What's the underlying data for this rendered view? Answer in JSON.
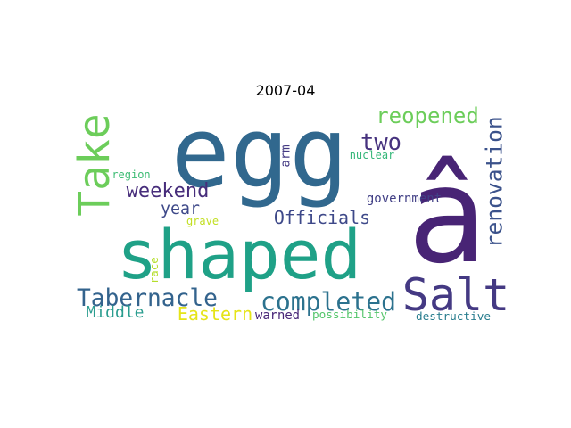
{
  "title": "2007-04",
  "words": [
    {
      "id": "egg",
      "text": "egg",
      "color": "#31688e"
    },
    {
      "id": "a-circumflex",
      "text": "â",
      "color": "#482475"
    },
    {
      "id": "shaped",
      "text": "shaped",
      "color": "#1fa187"
    },
    {
      "id": "take",
      "text": "Take",
      "color": "#6ccd5a"
    },
    {
      "id": "salt",
      "text": "Salt",
      "color": "#443983"
    },
    {
      "id": "tabernacle",
      "text": "Tabernacle",
      "color": "#33638d"
    },
    {
      "id": "completed",
      "text": "completed",
      "color": "#2c728e"
    },
    {
      "id": "reopened",
      "text": "reopened",
      "color": "#6ccd5a"
    },
    {
      "id": "renovation",
      "text": "renovation",
      "color": "#3b528b"
    },
    {
      "id": "weekend",
      "text": "weekend",
      "color": "#472d7b"
    },
    {
      "id": "two",
      "text": "two",
      "color": "#46327e"
    },
    {
      "id": "year",
      "text": "year",
      "color": "#3e4989"
    },
    {
      "id": "officials",
      "text": "Officials",
      "color": "#3e4989"
    },
    {
      "id": "middle",
      "text": "Middle",
      "color": "#2a9d8f"
    },
    {
      "id": "eastern",
      "text": "Eastern",
      "color": "#e5e419"
    },
    {
      "id": "government",
      "text": "government",
      "color": "#424086"
    },
    {
      "id": "warned",
      "text": "warned",
      "color": "#482677"
    },
    {
      "id": "possibility",
      "text": "possibility",
      "color": "#52c569"
    },
    {
      "id": "destructive",
      "text": "destructive",
      "color": "#287d8e"
    },
    {
      "id": "nuclear",
      "text": "nuclear",
      "color": "#35b779"
    },
    {
      "id": "region",
      "text": "region",
      "color": "#3dbc74"
    },
    {
      "id": "grave",
      "text": "grave",
      "color": "#c2df23"
    },
    {
      "id": "arm",
      "text": "arm",
      "color": "#443a83"
    },
    {
      "id": "race",
      "text": "race",
      "color": "#b5de2b"
    }
  ]
}
